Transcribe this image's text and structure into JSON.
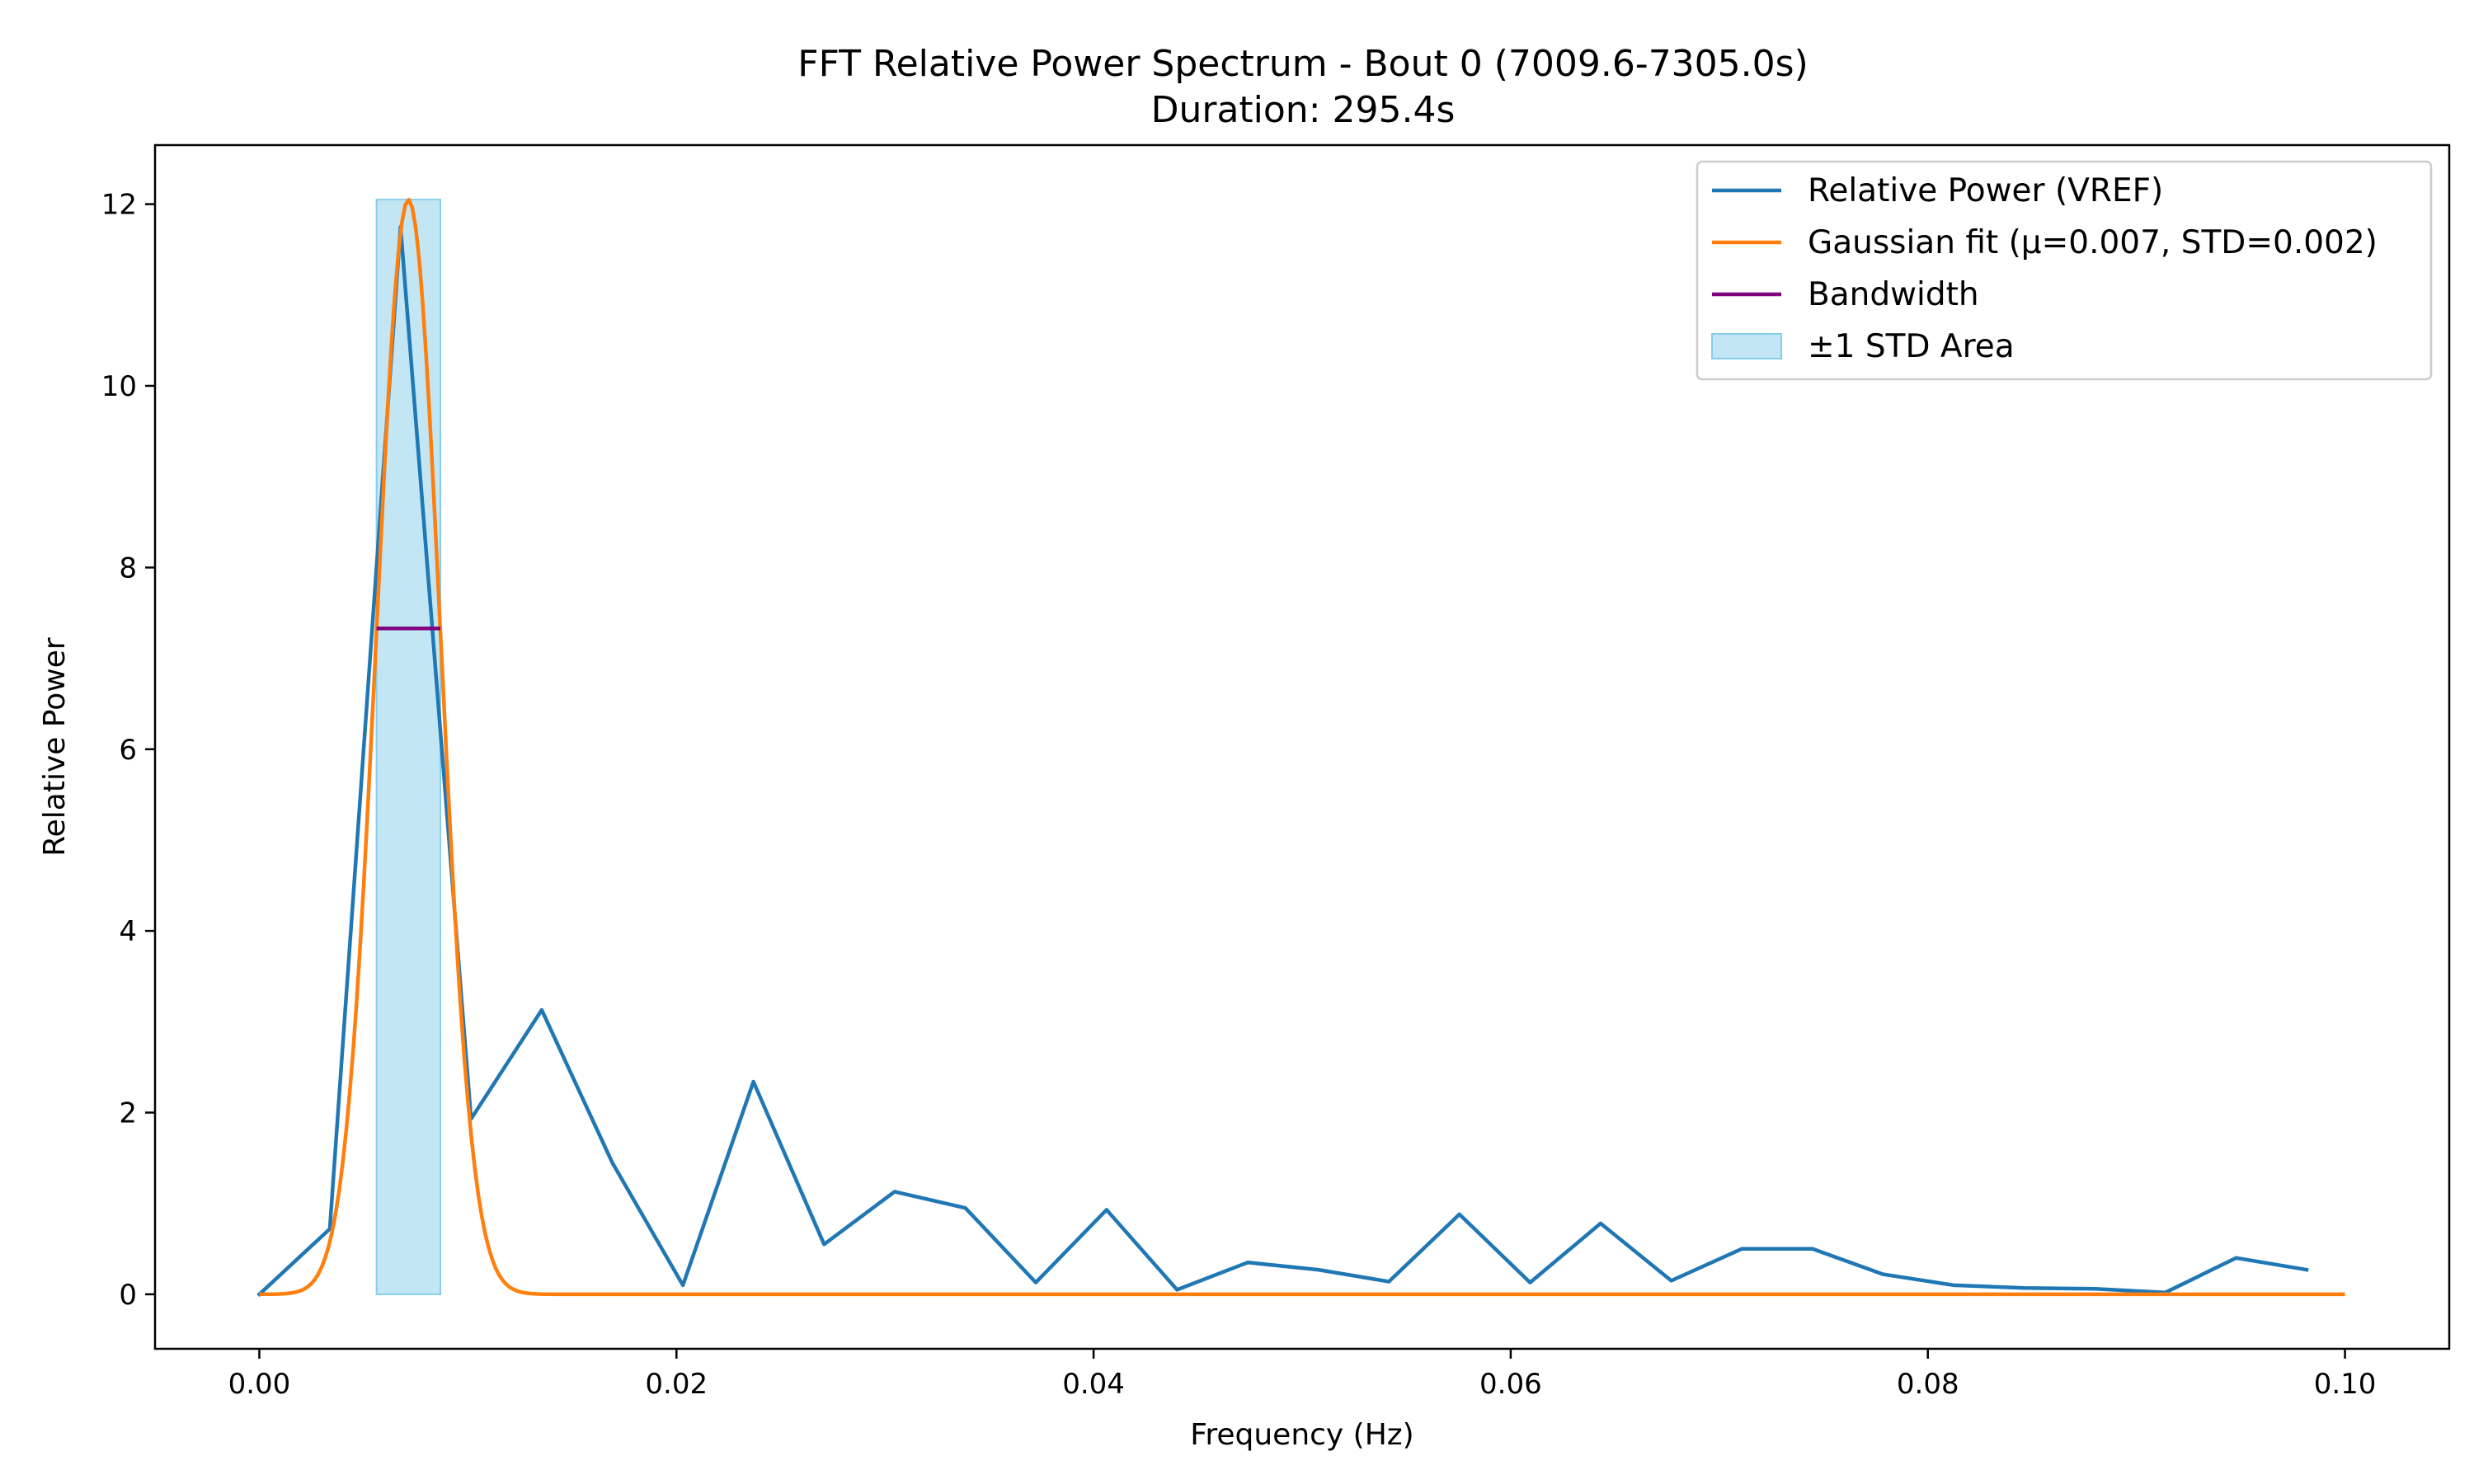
{
  "chart_data": {
    "type": "line",
    "title": "FFT Relative Power Spectrum - Bout 0 (7009.6-7305.0s)",
    "subtitle": "Duration: 295.4s",
    "xlabel": "Frequency (Hz)",
    "ylabel": "Relative Power",
    "xlim": [
      -0.005,
      0.105
    ],
    "ylim": [
      -0.6,
      12.65
    ],
    "x_ticks": [
      0.0,
      0.02,
      0.04,
      0.06,
      0.08,
      0.1
    ],
    "x_tick_labels": [
      "0.00",
      "0.02",
      "0.04",
      "0.06",
      "0.08",
      "0.10"
    ],
    "y_ticks": [
      0,
      2,
      4,
      6,
      8,
      10,
      12
    ],
    "y_tick_labels": [
      "0",
      "2",
      "4",
      "6",
      "8",
      "10",
      "12"
    ],
    "grid": false,
    "legend_position": "top-right",
    "series": [
      {
        "name": "Relative Power (VREF)",
        "kind": "line",
        "color": "#1f77b4",
        "x": [
          0.0,
          0.00338,
          0.00677,
          0.01015,
          0.01354,
          0.01692,
          0.02031,
          0.02369,
          0.02708,
          0.03046,
          0.03385,
          0.03723,
          0.04062,
          0.044,
          0.04739,
          0.05077,
          0.05416,
          0.05754,
          0.06093,
          0.06431,
          0.0677,
          0.07108,
          0.07447,
          0.07785,
          0.08124,
          0.08462,
          0.08801,
          0.09139,
          0.09478,
          0.09816
        ],
        "y": [
          0.0,
          0.72,
          11.75,
          1.93,
          3.13,
          1.45,
          0.1,
          2.34,
          0.55,
          1.13,
          0.95,
          0.13,
          0.93,
          0.05,
          0.35,
          0.27,
          0.14,
          0.88,
          0.13,
          0.78,
          0.15,
          0.5,
          0.5,
          0.22,
          0.1,
          0.07,
          0.06,
          0.02,
          0.4,
          0.27
        ]
      },
      {
        "name": "Gaussian fit (μ=0.007, STD=0.002)",
        "kind": "gaussian",
        "color": "#ff7f0e",
        "amplitude": 12.05,
        "mu": 0.00715,
        "sigma": 0.00153,
        "x_range": [
          0.0,
          0.1
        ]
      },
      {
        "name": "Bandwidth",
        "kind": "hline",
        "color": "#800080",
        "x": [
          0.00562,
          0.00868
        ],
        "y": 7.33
      },
      {
        "name": "±1 STD Area",
        "kind": "fill",
        "color": "#87ceeb",
        "x": [
          0.00562,
          0.00868
        ]
      }
    ]
  }
}
